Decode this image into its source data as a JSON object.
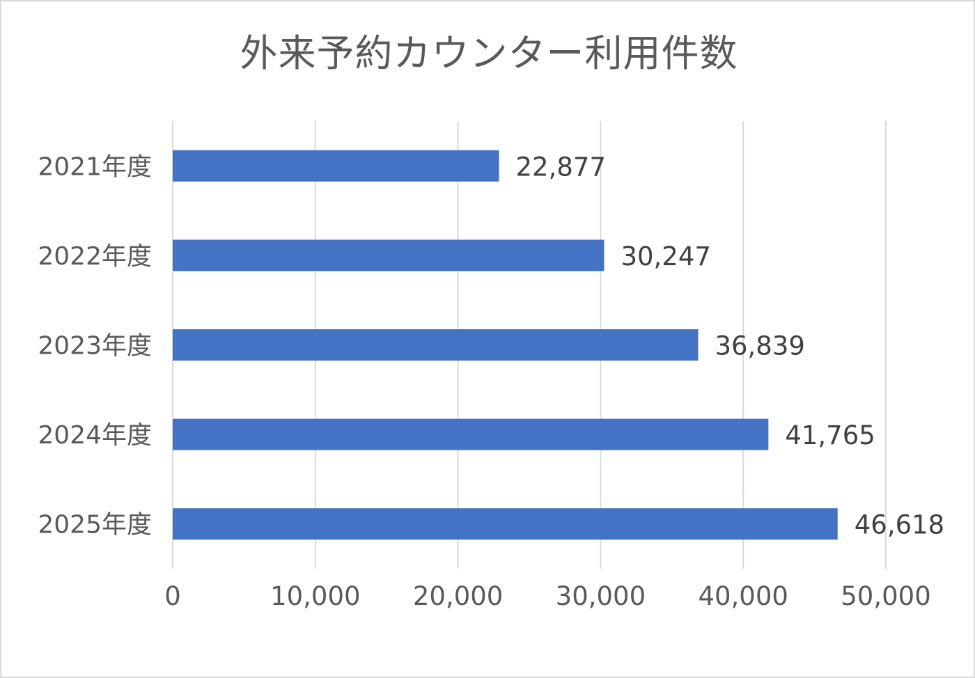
{
  "chart_data": {
    "type": "bar",
    "orientation": "horizontal",
    "title": "外来予約カウンター利用件数",
    "categories": [
      "2021年度",
      "2022年度",
      "2023年度",
      "2024年度",
      "2025年度"
    ],
    "values": [
      22877,
      30247,
      36839,
      41765,
      46618
    ],
    "value_labels": [
      "22,877",
      "30,247",
      "36,839",
      "41,765",
      "46,618"
    ],
    "xlim": [
      0,
      50000
    ],
    "x_ticks": [
      0,
      10000,
      20000,
      30000,
      40000,
      50000
    ],
    "x_tick_labels": [
      "0",
      "10,000",
      "20,000",
      "30,000",
      "40,000",
      "50,000"
    ],
    "grid": true,
    "legend": "none",
    "bar_color": "#4472c4",
    "grid_color": "#d9d9d9"
  }
}
